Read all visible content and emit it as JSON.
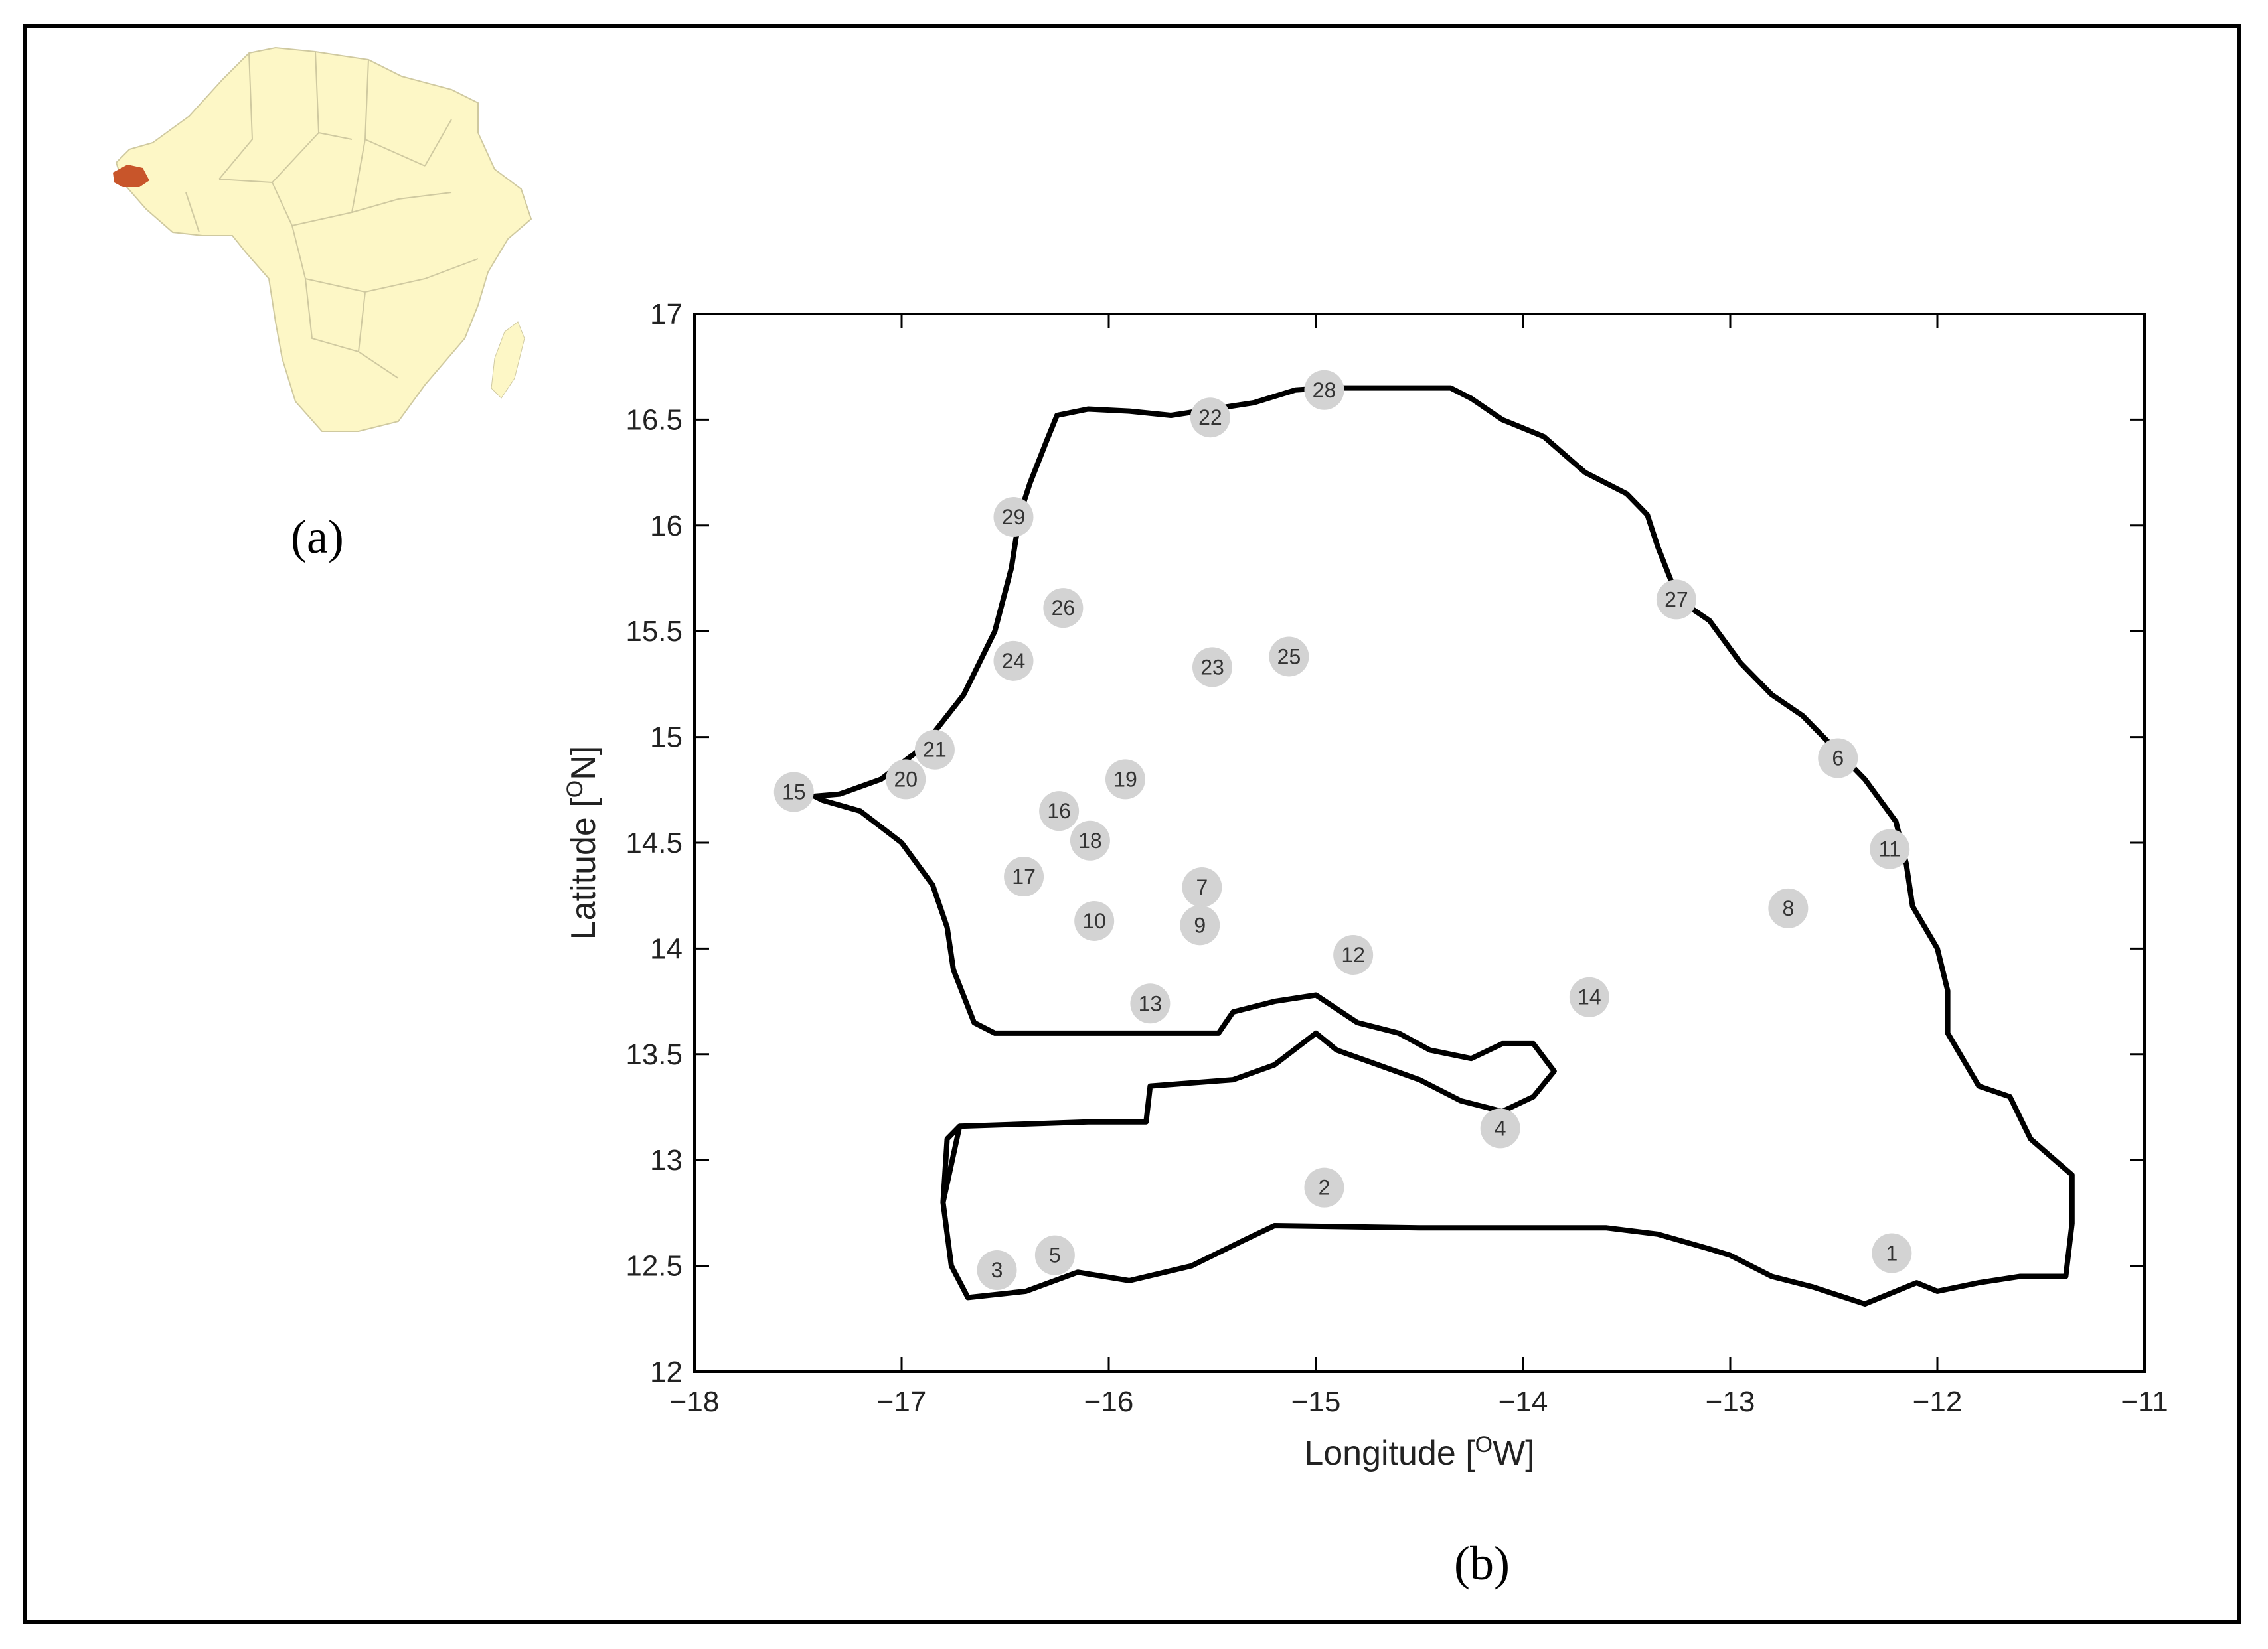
{
  "panels": {
    "a_label": "(a)",
    "b_label": "(b)"
  },
  "inset": {
    "land_color": "#fdf7c6",
    "border_color": "#cfc9a0",
    "highlight_color": "#c8552a"
  },
  "map": {
    "x_axis": {
      "label_main": "Longitude [",
      "label_sup": "O",
      "label_end": "W]",
      "min": -18,
      "max": -11,
      "ticks": [
        -18,
        -17,
        -16,
        -15,
        -14,
        -13,
        -12,
        -11
      ],
      "tick_labels": [
        "−18",
        "−17",
        "−16",
        "−15",
        "−14",
        "−13",
        "−12",
        "−11"
      ]
    },
    "y_axis": {
      "label_main": "Latitude [",
      "label_sup": "O",
      "label_end": "N]",
      "min": 12,
      "max": 17,
      "ticks": [
        12,
        12.5,
        13,
        13.5,
        14,
        14.5,
        15,
        15.5,
        16,
        16.5,
        17
      ],
      "tick_labels": [
        "12",
        "12.5",
        "13",
        "13.5",
        "14",
        "14.5",
        "15",
        "15.5",
        "16",
        "16.5",
        "17"
      ]
    },
    "stations": [
      {
        "id": "1",
        "lon": -12.22,
        "lat": 12.56
      },
      {
        "id": "2",
        "lon": -14.96,
        "lat": 12.87
      },
      {
        "id": "3",
        "lon": -16.54,
        "lat": 12.48
      },
      {
        "id": "4",
        "lon": -14.11,
        "lat": 13.15
      },
      {
        "id": "5",
        "lon": -16.26,
        "lat": 12.55
      },
      {
        "id": "6",
        "lon": -12.48,
        "lat": 14.9
      },
      {
        "id": "7",
        "lon": -15.55,
        "lat": 14.29
      },
      {
        "id": "8",
        "lon": -12.72,
        "lat": 14.19
      },
      {
        "id": "9",
        "lon": -15.56,
        "lat": 14.11
      },
      {
        "id": "10",
        "lon": -16.07,
        "lat": 14.13
      },
      {
        "id": "11",
        "lon": -12.23,
        "lat": 14.47
      },
      {
        "id": "12",
        "lon": -14.82,
        "lat": 13.97
      },
      {
        "id": "13",
        "lon": -15.8,
        "lat": 13.74
      },
      {
        "id": "14",
        "lon": -13.68,
        "lat": 13.77
      },
      {
        "id": "15",
        "lon": -17.52,
        "lat": 14.74
      },
      {
        "id": "16",
        "lon": -16.24,
        "lat": 14.65
      },
      {
        "id": "17",
        "lon": -16.41,
        "lat": 14.34
      },
      {
        "id": "18",
        "lon": -16.09,
        "lat": 14.51
      },
      {
        "id": "19",
        "lon": -15.92,
        "lat": 14.8
      },
      {
        "id": "20",
        "lon": -16.98,
        "lat": 14.8
      },
      {
        "id": "21",
        "lon": -16.84,
        "lat": 14.94
      },
      {
        "id": "22",
        "lon": -15.51,
        "lat": 16.51
      },
      {
        "id": "23",
        "lon": -15.5,
        "lat": 15.33
      },
      {
        "id": "24",
        "lon": -16.46,
        "lat": 15.36
      },
      {
        "id": "25",
        "lon": -15.13,
        "lat": 15.38
      },
      {
        "id": "26",
        "lon": -16.22,
        "lat": 15.61
      },
      {
        "id": "27",
        "lon": -13.26,
        "lat": 15.65
      },
      {
        "id": "28",
        "lon": -14.96,
        "lat": 16.64
      },
      {
        "id": "29",
        "lon": -16.46,
        "lat": 16.04
      }
    ]
  }
}
